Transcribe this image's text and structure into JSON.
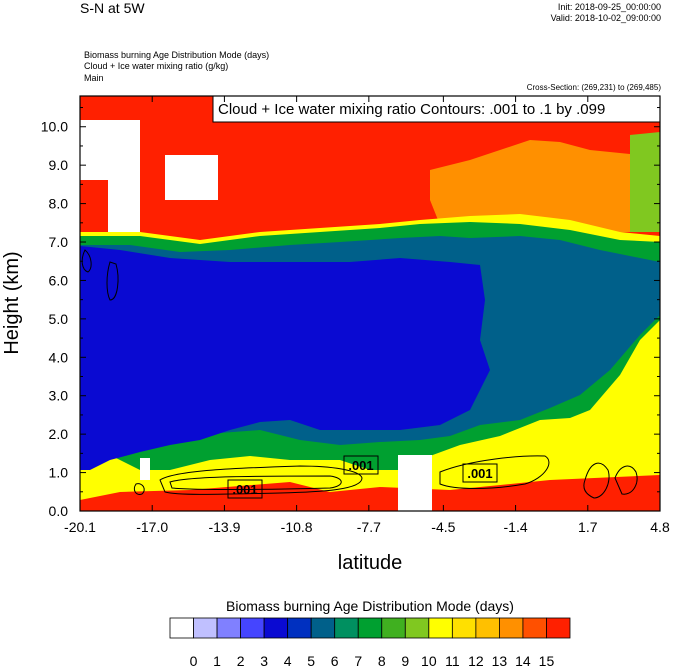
{
  "header": {
    "title": "S-N at 5W",
    "init": "Init: 2018-09-25_00:00:00",
    "valid": "Valid: 2018-10-02_09:00:00",
    "subtitle_lines": [
      "Biomass burning Age Distribution Mode   (days)",
      "Cloud + Ice water mixing ratio   (g/kg)",
      "Main"
    ],
    "cross_section": "Cross-Section: (269,231) to (269,485)"
  },
  "colors": {
    "white": "#ffffff",
    "lav1": "#c0c0ff",
    "lav2": "#8080ff",
    "b3": "#4545ff",
    "b4": "#0a0ad2",
    "b5": "#0030c0",
    "teal6": "#00608a",
    "g7": "#009060",
    "g8": "#00a030",
    "g9": "#40b020",
    "g10": "#80c820",
    "y11": "#ffff00",
    "y12": "#ffe000",
    "o13": "#ffc000",
    "o14": "#ff9000",
    "r15": "#ff5000",
    "red": "#ff2000",
    "contour": "#000000"
  },
  "chart_data": {
    "type": "contour-filled",
    "field": "Biomass burning Age Distribution Mode (days)",
    "overlay": "Cloud + Ice water mixing ratio Contours: .001 to .1 by .099",
    "xlabel": "latitude",
    "ylabel": "Height (km)",
    "x_ticks": [
      "-20.1",
      "-17.0",
      "-13.9",
      "-10.8",
      "-7.7",
      "-4.5",
      "-1.4",
      "1.7",
      "4.8"
    ],
    "y_ticks": [
      "0.0",
      "1.0",
      "2.0",
      "3.0",
      "4.0",
      "5.0",
      "6.0",
      "7.0",
      "8.0",
      "9.0",
      "10.0"
    ],
    "xlim": [
      -20.1,
      4.8
    ],
    "ylim": [
      0.0,
      10.8
    ],
    "contour_labels": [
      ".001",
      ".001",
      ".001"
    ],
    "colorbar": {
      "title": "Biomass burning Age Distribution Mode  (days)",
      "levels": [
        "0",
        "1",
        "2",
        "3",
        "4",
        "5",
        "6",
        "7",
        "8",
        "9",
        "10",
        "11",
        "12",
        "13",
        "14",
        "15"
      ]
    }
  }
}
